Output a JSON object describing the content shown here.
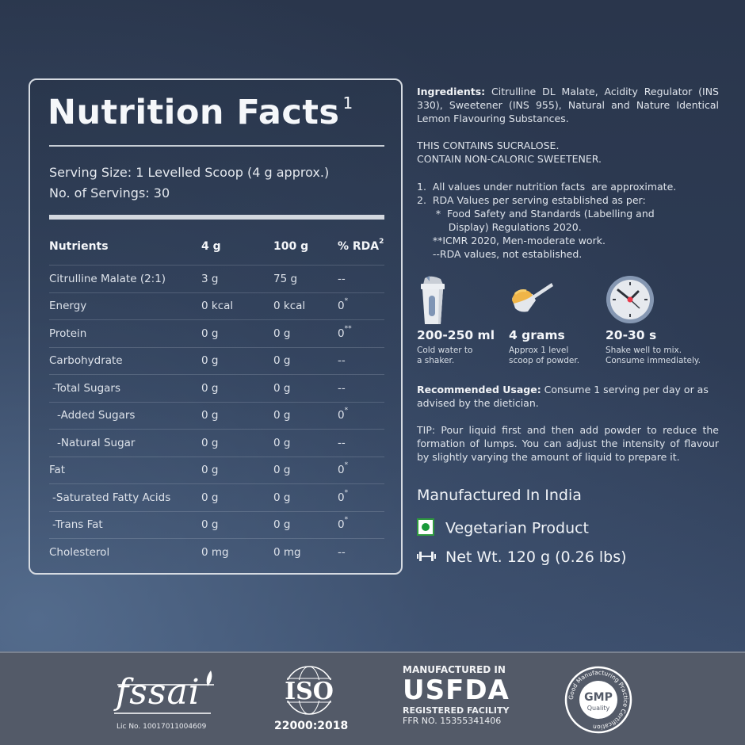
{
  "nutrition": {
    "title": "Nutrition Facts",
    "title_sup": "1",
    "serving_size": "Serving Size: 1 Levelled Scoop (4 g approx.)",
    "servings": "No. of Servings: 30",
    "headers": {
      "name": "Nutrients",
      "per_serving": "4 g",
      "per_100g": "100 g",
      "rda": "% RDA",
      "rda_sup": "2"
    },
    "rows": [
      {
        "name": "Citrulline Malate (2:1)",
        "per_serving": "3 g",
        "per_100g": "75 g",
        "rda": "--",
        "rda_sup": "",
        "indent": 0
      },
      {
        "name": "Energy",
        "per_serving": "0 kcal",
        "per_100g": "0 kcal",
        "rda": "0",
        "rda_sup": "*",
        "indent": 0
      },
      {
        "name": "Protein",
        "per_serving": "0 g",
        "per_100g": "0 g",
        "rda": "0",
        "rda_sup": "**",
        "indent": 0
      },
      {
        "name": "Carbohydrate",
        "per_serving": "0 g",
        "per_100g": "0 g",
        "rda": "--",
        "rda_sup": "",
        "indent": 0
      },
      {
        "name": "-Total Sugars",
        "per_serving": "0 g",
        "per_100g": "0 g",
        "rda": "--",
        "rda_sup": "",
        "indent": 1
      },
      {
        "name": "-Added Sugars",
        "per_serving": "0 g",
        "per_100g": "0 g",
        "rda": "0",
        "rda_sup": "*",
        "indent": 2
      },
      {
        "name": "-Natural Sugar",
        "per_serving": "0 g",
        "per_100g": "0 g",
        "rda": "--",
        "rda_sup": "",
        "indent": 2
      },
      {
        "name": "Fat",
        "per_serving": "0 g",
        "per_100g": "0 g",
        "rda": "0",
        "rda_sup": "*",
        "indent": 0
      },
      {
        "name": "-Saturated Fatty Acids",
        "per_serving": "0 g",
        "per_100g": "0 g",
        "rda": "0",
        "rda_sup": "*",
        "indent": 1
      },
      {
        "name": "-Trans Fat",
        "per_serving": "0 g",
        "per_100g": "0 g",
        "rda": "0",
        "rda_sup": "*",
        "indent": 1
      },
      {
        "name": "Cholesterol",
        "per_serving": "0 mg",
        "per_100g": "0 mg",
        "rda": "--",
        "rda_sup": "",
        "indent": 0
      }
    ]
  },
  "info": {
    "ingredients_label": "Ingredients:",
    "ingredients_text": " Citrulline DL Malate, Acidity Regulator (INS 330), Sweetener (INS 955), Natural and Nature Identical Lemon Flavouring Substances.",
    "warning_1": "THIS CONTAINS SUCRALOSE.",
    "warning_2": "CONTAIN NON-CALORIC SWEETENER.",
    "notes": [
      "1.  All values under nutrition facts  are approximate.",
      "2.  RDA Values per serving established as per:",
      "      *  Food Safety and Standards (Labelling and",
      "          Display) Regulations 2020.",
      "     **ICMR 2020, Men-moderate work.",
      "     --RDA values, not established."
    ],
    "steps": [
      {
        "icon": "shaker-icon",
        "value": "200-250 ml",
        "line1": "Cold water to",
        "line2": "a shaker."
      },
      {
        "icon": "scoop-icon",
        "value": "4 grams",
        "line1": "Approx 1 level",
        "line2": "scoop of powder."
      },
      {
        "icon": "clock-icon",
        "value": "20-30 s",
        "line1": "Shake well to mix.",
        "line2": "Consume immediately."
      }
    ],
    "usage_label": "Recommended Usage:",
    "usage_text": " Consume 1 serving per day or as advised by the dietician.",
    "tip": "TIP: Pour liquid first and then add powder to reduce the formation of lumps. You can adjust the intensity of flavour by slightly varying the amount of liquid to prepare it.",
    "manufactured": "Manufactured In India",
    "vegetarian": "Vegetarian Product",
    "net_weight": "Net Wt. 120 g (0.26 lbs)"
  },
  "footer": {
    "fssai_logo": "fssai",
    "fssai_license": "Lic No. 10017011004609",
    "iso_logo": "ISO",
    "iso_code": "22000:2018",
    "usfda_line1": "MANUFACTURED IN",
    "usfda_line2": "USFDA",
    "usfda_line3": "REGISTERED FACILITY",
    "usfda_line4": "FFR NO. 15355341406",
    "gmp_main": "GMP",
    "gmp_sub": "Quality",
    "gmp_ring": "Good Manufacturing Practice Certification"
  },
  "colors": {
    "background_top": "#2a364c",
    "background_bottom_left": "#5c7698",
    "footer": "#535a68",
    "veg_green": "#1a9a3a",
    "clock_hand_center": "#e8394a",
    "scoop_powder": "#f0b548"
  }
}
